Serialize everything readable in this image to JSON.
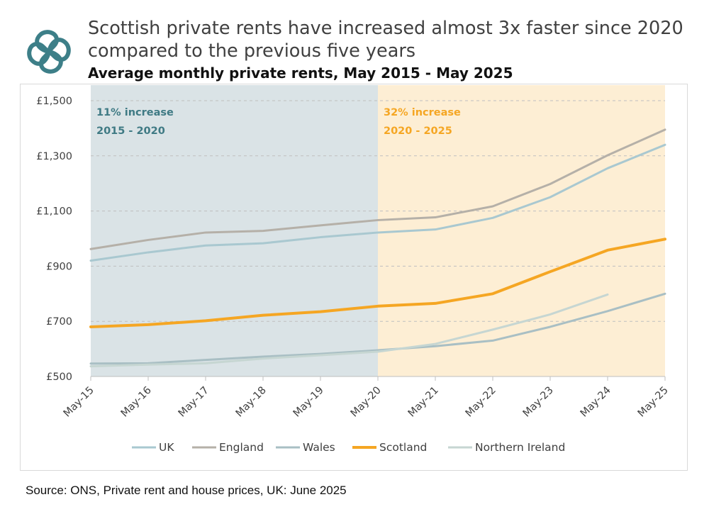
{
  "header": {
    "title": "Scottish private rents have increased almost 3x faster since 2020 compared to the previous five years",
    "subtitle": "Average monthly private rents, May 2015 - May 2025"
  },
  "source": "Source: ONS, Private rent and house prices, UK: June 2025",
  "colors": {
    "period1_fill": "#dae3e6",
    "period2_fill": "#fdeed4",
    "annotation1": "#3f7a84",
    "annotation2": "#f5a623",
    "logo": "#3d7f88"
  },
  "chart_data": {
    "type": "line",
    "title": "Average monthly private rents, May 2015 - May 2025",
    "xlabel": "",
    "ylabel": "",
    "categories": [
      "May-15",
      "May-16",
      "May-17",
      "May-18",
      "May-19",
      "May-20",
      "May-21",
      "May-22",
      "May-23",
      "May-24",
      "May-25"
    ],
    "ylim": [
      500,
      1500
    ],
    "yticks": [
      500,
      700,
      900,
      1100,
      1300,
      1500
    ],
    "ytick_labels": [
      "£500",
      "£700",
      "£900",
      "£1,100",
      "£1,300",
      "£1,500"
    ],
    "grid": true,
    "legend_position": "bottom",
    "periods": [
      {
        "from": "May-15",
        "to": "May-20",
        "line1": "11% increase",
        "line2": "2015 - 2020"
      },
      {
        "from": "May-20",
        "to": "May-25",
        "line1": "32% increase",
        "line2": "2020 - 2025"
      }
    ],
    "series": [
      {
        "name": "UK",
        "color": "#a9c8d0",
        "width": 3,
        "values": [
          920,
          950,
          975,
          983,
          1005,
          1022,
          1033,
          1075,
          1150,
          1255,
          1340
        ]
      },
      {
        "name": "England",
        "color": "#b5b0a8",
        "width": 3,
        "values": [
          962,
          995,
          1022,
          1028,
          1048,
          1067,
          1077,
          1117,
          1198,
          1302,
          1395
        ]
      },
      {
        "name": "Wales",
        "color": "#a9bfc4",
        "width": 3,
        "values": [
          547,
          548,
          560,
          572,
          582,
          595,
          610,
          630,
          680,
          737,
          800
        ]
      },
      {
        "name": "Scotland",
        "color": "#f5a623",
        "width": 4,
        "values": [
          680,
          688,
          702,
          722,
          735,
          755,
          765,
          800,
          880,
          958,
          998
        ]
      },
      {
        "name": "Northern Ireland",
        "color": "#c6d6d2",
        "width": 3,
        "values": [
          537,
          543,
          548,
          565,
          577,
          590,
          618,
          670,
          725,
          797,
          null
        ]
      }
    ]
  }
}
